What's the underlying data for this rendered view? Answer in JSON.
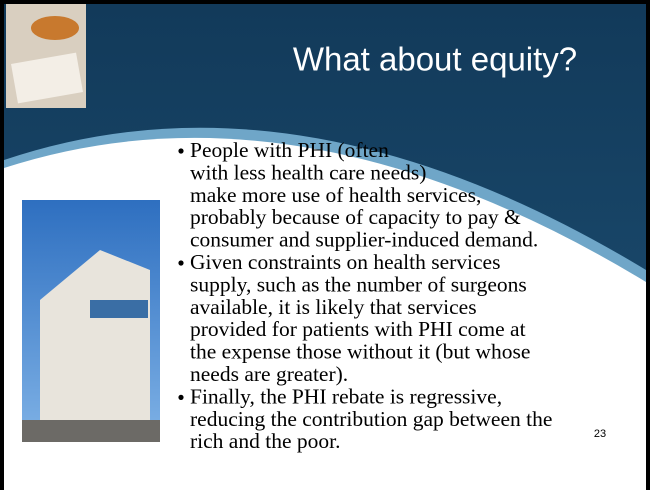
{
  "slide": {
    "title": "What about equity?",
    "bullets": [
      [
        "People with PHI (often",
        "with less health care needs)",
        "make more use of health services,",
        "probably because of capacity to pay &",
        "consumer and supplier-induced demand."
      ],
      [
        "Given constraints on health services",
        "supply, such as the number of surgeons",
        "available, it is likely that services",
        "provided for patients with PHI come at",
        "the expense those without it (but whose",
        "needs are greater)."
      ],
      [
        "Finally, the PHI rebate is regressive,",
        "reducing the contribution gap between the",
        "rich and the poor."
      ]
    ],
    "page_number": "23"
  }
}
